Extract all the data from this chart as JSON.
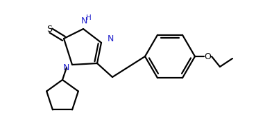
{
  "bg_color": "#ffffff",
  "line_color": "#000000",
  "n_color": "#2020cc",
  "line_width": 1.6,
  "figsize": [
    3.69,
    1.7
  ],
  "dpi": 100,
  "xlim": [
    0,
    369
  ],
  "ylim": [
    0,
    170
  ]
}
